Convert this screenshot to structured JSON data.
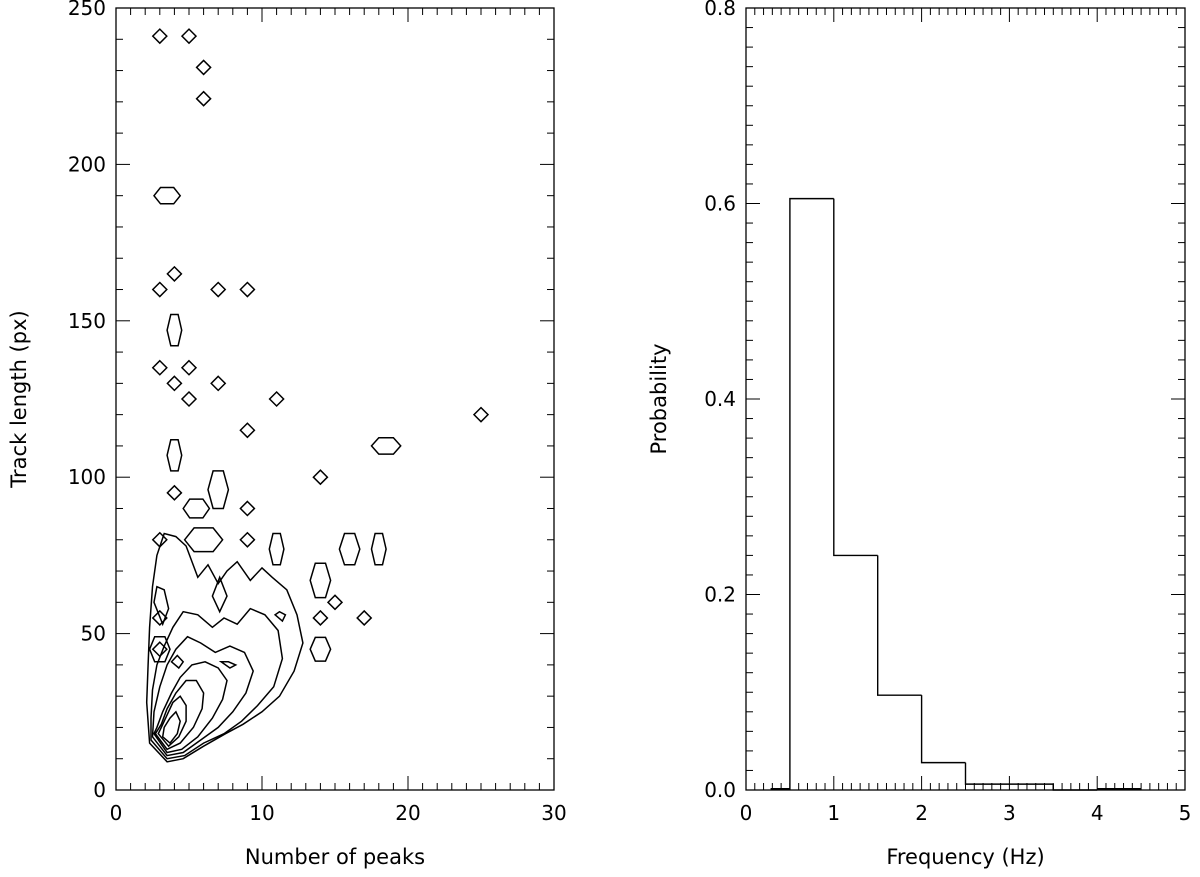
{
  "chart_data": [
    {
      "type": "contour",
      "xlabel": "Number of peaks",
      "ylabel": "Track length (px)",
      "xlim": [
        0,
        30
      ],
      "ylim": [
        0,
        250
      ],
      "x_ticks": [
        0,
        10,
        20,
        30
      ],
      "y_ticks": [
        0,
        50,
        100,
        150,
        200,
        250
      ],
      "x_tick_labels": [
        "0",
        "10",
        "20",
        "30"
      ],
      "y_tick_labels": [
        "0",
        "50",
        "100",
        "150",
        "200",
        "250"
      ],
      "x_minor_step": 1,
      "y_minor_step": 10,
      "contours": [
        [
          [
            2.3,
            15
          ],
          [
            3.5,
            9
          ],
          [
            4.6,
            10
          ],
          [
            6,
            14
          ],
          [
            7.5,
            18
          ],
          [
            8.7,
            21
          ],
          [
            10,
            25
          ],
          [
            11.2,
            30
          ],
          [
            12.2,
            38
          ],
          [
            12.8,
            47
          ],
          [
            12.4,
            56
          ],
          [
            11.7,
            64
          ],
          [
            10.7,
            68
          ],
          [
            10,
            71
          ],
          [
            9.2,
            67
          ],
          [
            8.3,
            73
          ],
          [
            7.6,
            70
          ],
          [
            7,
            66
          ],
          [
            6.3,
            72
          ],
          [
            5.6,
            68
          ],
          [
            4.8,
            78
          ],
          [
            4.1,
            81
          ],
          [
            3.3,
            82
          ],
          [
            2.8,
            75
          ],
          [
            2.5,
            65
          ],
          [
            2.3,
            52
          ],
          [
            2.2,
            40
          ],
          [
            2.1,
            28
          ]
        ],
        [
          [
            2.4,
            16
          ],
          [
            3.5,
            10
          ],
          [
            4.7,
            11
          ],
          [
            6,
            15
          ],
          [
            7.4,
            18
          ],
          [
            8.6,
            22
          ],
          [
            9.7,
            27
          ],
          [
            10.8,
            33
          ],
          [
            11.4,
            42
          ],
          [
            11.1,
            51
          ],
          [
            10.2,
            56
          ],
          [
            9.2,
            58
          ],
          [
            8.3,
            53
          ],
          [
            7.4,
            55
          ],
          [
            6.6,
            52
          ],
          [
            5.6,
            56
          ],
          [
            4.6,
            57
          ],
          [
            3.9,
            52
          ],
          [
            3.3,
            46
          ],
          [
            2.8,
            40
          ],
          [
            2.5,
            32
          ],
          [
            2.4,
            23
          ]
        ],
        [
          [
            2.5,
            17
          ],
          [
            3.5,
            11
          ],
          [
            4.6,
            12
          ],
          [
            5.8,
            16
          ],
          [
            7,
            20
          ],
          [
            8,
            25
          ],
          [
            8.9,
            31
          ],
          [
            9.4,
            38
          ],
          [
            8.8,
            44
          ],
          [
            7.8,
            46
          ],
          [
            6.8,
            44
          ],
          [
            5.8,
            47
          ],
          [
            4.9,
            49
          ],
          [
            4.1,
            45
          ],
          [
            3.5,
            40
          ],
          [
            3,
            33
          ],
          [
            2.6,
            25
          ]
        ],
        [
          [
            2.6,
            18
          ],
          [
            3.5,
            12
          ],
          [
            4.5,
            13
          ],
          [
            5.6,
            17
          ],
          [
            6.6,
            23
          ],
          [
            7.3,
            29
          ],
          [
            7.6,
            35
          ],
          [
            7,
            39
          ],
          [
            6.1,
            41
          ],
          [
            5.2,
            40
          ],
          [
            4.4,
            36
          ],
          [
            3.8,
            31
          ],
          [
            3.2,
            25
          ],
          [
            2.8,
            20
          ]
        ],
        [
          [
            2.7,
            18
          ],
          [
            3.5,
            13
          ],
          [
            4.4,
            15
          ],
          [
            5.3,
            20
          ],
          [
            5.9,
            26
          ],
          [
            6,
            31
          ],
          [
            5.5,
            35
          ],
          [
            4.8,
            35
          ],
          [
            4.1,
            31
          ],
          [
            3.5,
            26
          ],
          [
            3.1,
            21
          ]
        ],
        [
          [
            2.9,
            18
          ],
          [
            3.6,
            14
          ],
          [
            4.3,
            17
          ],
          [
            4.8,
            22
          ],
          [
            4.8,
            27
          ],
          [
            4.4,
            30
          ],
          [
            3.9,
            28
          ],
          [
            3.5,
            24
          ],
          [
            3.1,
            20
          ]
        ],
        [
          [
            3.2,
            17
          ],
          [
            3.7,
            15
          ],
          [
            4.2,
            18
          ],
          [
            4.4,
            22
          ],
          [
            4.1,
            25
          ],
          [
            3.7,
            23
          ],
          [
            3.3,
            20
          ]
        ],
        [
          [
            2.6,
            60
          ],
          [
            3.2,
            53
          ],
          [
            3.6,
            58
          ],
          [
            3.3,
            64
          ],
          [
            2.8,
            65
          ]
        ],
        [
          [
            10.9,
            56
          ],
          [
            11.4,
            54
          ],
          [
            11.6,
            56
          ],
          [
            11.2,
            57
          ]
        ],
        [
          [
            7.2,
            41
          ],
          [
            7.8,
            39
          ],
          [
            8.2,
            40
          ],
          [
            7.7,
            41
          ]
        ],
        [
          [
            6.6,
            62
          ],
          [
            7.1,
            57
          ],
          [
            7.6,
            62
          ],
          [
            7.1,
            68
          ]
        ],
        [
          [
            3.8,
            41
          ],
          [
            4.3,
            39
          ],
          [
            4.6,
            41
          ],
          [
            4.2,
            43
          ]
        ]
      ],
      "diamonds": [
        {
          "x": 3,
          "y": 241
        },
        {
          "x": 5,
          "y": 241
        },
        {
          "x": 6,
          "y": 231
        },
        {
          "x": 6,
          "y": 221
        },
        {
          "x": 4,
          "y": 165
        },
        {
          "x": 3,
          "y": 160
        },
        {
          "x": 7,
          "y": 160
        },
        {
          "x": 9,
          "y": 160
        },
        {
          "x": 3,
          "y": 135
        },
        {
          "x": 5,
          "y": 135
        },
        {
          "x": 4,
          "y": 130
        },
        {
          "x": 7,
          "y": 130
        },
        {
          "x": 5,
          "y": 125
        },
        {
          "x": 11,
          "y": 125
        },
        {
          "x": 25,
          "y": 120
        },
        {
          "x": 9,
          "y": 115
        },
        {
          "x": 14,
          "y": 100
        },
        {
          "x": 4,
          "y": 95
        },
        {
          "x": 9,
          "y": 90
        },
        {
          "x": 3,
          "y": 80
        },
        {
          "x": 9,
          "y": 80
        },
        {
          "x": 15,
          "y": 60
        },
        {
          "x": 3,
          "y": 55
        },
        {
          "x": 14,
          "y": 55
        },
        {
          "x": 17,
          "y": 55
        },
        {
          "x": 3,
          "y": 45
        }
      ],
      "ellipses": [
        {
          "x": 3.5,
          "y": 190,
          "rx": 0.9,
          "ry": 2.6
        },
        {
          "x": 4,
          "y": 147,
          "rx": 0.5,
          "ry": 5
        },
        {
          "x": 4,
          "y": 107,
          "rx": 0.5,
          "ry": 5
        },
        {
          "x": 7,
          "y": 96,
          "rx": 0.7,
          "ry": 6
        },
        {
          "x": 5.5,
          "y": 90,
          "rx": 0.9,
          "ry": 3
        },
        {
          "x": 6,
          "y": 80,
          "rx": 1.3,
          "ry": 3.8
        },
        {
          "x": 11,
          "y": 77,
          "rx": 0.5,
          "ry": 5
        },
        {
          "x": 16,
          "y": 77,
          "rx": 0.7,
          "ry": 5
        },
        {
          "x": 18,
          "y": 77,
          "rx": 0.5,
          "ry": 5
        },
        {
          "x": 18.5,
          "y": 110,
          "rx": 1,
          "ry": 2.6
        },
        {
          "x": 14,
          "y": 67,
          "rx": 0.7,
          "ry": 5.5
        },
        {
          "x": 14,
          "y": 45,
          "rx": 0.7,
          "ry": 3.8
        },
        {
          "x": 3,
          "y": 45,
          "rx": 0.7,
          "ry": 4
        }
      ]
    },
    {
      "type": "histogram",
      "xlabel": "Frequency (Hz)",
      "ylabel": "Probability",
      "xlim": [
        0,
        5
      ],
      "ylim": [
        0,
        0.8
      ],
      "x_ticks": [
        0,
        1,
        2,
        3,
        4,
        5
      ],
      "y_ticks": [
        0.0,
        0.2,
        0.4,
        0.6,
        0.8
      ],
      "x_tick_labels": [
        "0",
        "1",
        "2",
        "3",
        "4",
        "5"
      ],
      "y_tick_labels": [
        "0.0",
        "0.2",
        "0.4",
        "0.6",
        "0.8"
      ],
      "x_minor_step": 0.1,
      "y_minor_step": 0.02,
      "bins": [
        {
          "x0": 0.0,
          "x1": 0.5,
          "y": 0.0
        },
        {
          "x0": 0.5,
          "x1": 1.0,
          "y": 0.605
        },
        {
          "x0": 1.0,
          "x1": 1.5,
          "y": 0.24
        },
        {
          "x0": 1.5,
          "x1": 2.0,
          "y": 0.097
        },
        {
          "x0": 2.0,
          "x1": 2.5,
          "y": 0.028
        },
        {
          "x0": 2.5,
          "x1": 3.0,
          "y": 0.006
        },
        {
          "x0": 3.0,
          "x1": 3.5,
          "y": 0.006
        },
        {
          "x0": 3.5,
          "x1": 4.0,
          "y": 0.0
        },
        {
          "x0": 4.0,
          "x1": 4.5,
          "y": 0.0
        },
        {
          "x0": 4.5,
          "x1": 5.0,
          "y": 0.0
        }
      ],
      "flat_segments": [
        {
          "x0": 0.28,
          "x1": 0.5,
          "y": 0.0
        },
        {
          "x0": 4.0,
          "x1": 4.5,
          "y": 0.0
        }
      ]
    }
  ]
}
